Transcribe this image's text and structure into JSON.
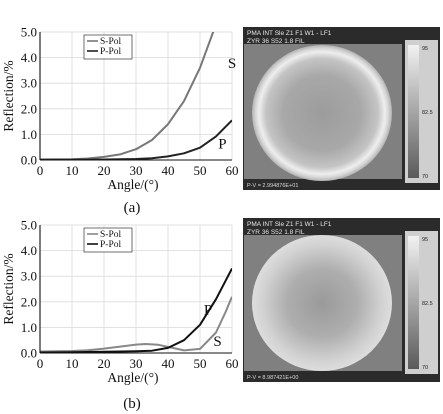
{
  "chart_data": [
    {
      "type": "line",
      "panel": "(a)",
      "xlabel": "Angle/(°)",
      "ylabel": "Reflection/%",
      "xlim": [
        0,
        60
      ],
      "ylim": [
        0,
        5
      ],
      "xticks": [
        "0",
        "10",
        "20",
        "30",
        "40",
        "50",
        "60"
      ],
      "yticks": [
        "0.0",
        "1.0",
        "2.0",
        "3.0",
        "4.0",
        "5.0"
      ],
      "grid": true,
      "legend": [
        "S-Pol",
        "P-Pol"
      ],
      "legend_placement": "top-left",
      "curve_labels": {
        "s": "S",
        "p": "P"
      },
      "series": [
        {
          "name": "S-Pol",
          "color": "#777777",
          "x": [
            0,
            10,
            15,
            20,
            25,
            30,
            35,
            40,
            45,
            50,
            55
          ],
          "y": [
            0.02,
            0.03,
            0.06,
            0.12,
            0.22,
            0.42,
            0.78,
            1.4,
            2.3,
            3.6,
            5.3
          ]
        },
        {
          "name": "P-Pol",
          "color": "#222222",
          "x": [
            0,
            10,
            20,
            30,
            35,
            40,
            45,
            50,
            55,
            60
          ],
          "y": [
            0.01,
            0.01,
            0.02,
            0.04,
            0.07,
            0.14,
            0.26,
            0.48,
            0.92,
            1.55
          ]
        }
      ]
    },
    {
      "type": "line",
      "panel": "(b)",
      "xlabel": "Angle/(°)",
      "ylabel": "Reflection/%",
      "xlim": [
        0,
        60
      ],
      "ylim": [
        0,
        5
      ],
      "xticks": [
        "0",
        "10",
        "20",
        "30",
        "40",
        "50",
        "60"
      ],
      "yticks": [
        "0.0",
        "1.0",
        "2.0",
        "3.0",
        "4.0",
        "5.0"
      ],
      "grid": true,
      "legend": [
        "S-Pol",
        "P-Pol"
      ],
      "legend_placement": "top-left",
      "curve_labels": {
        "s": "S",
        "p": "P"
      },
      "series": [
        {
          "name": "S-Pol",
          "color": "#888888",
          "x": [
            0,
            10,
            15,
            20,
            25,
            30,
            33,
            37,
            40,
            45,
            50,
            55,
            58,
            60
          ],
          "y": [
            0.06,
            0.08,
            0.11,
            0.17,
            0.25,
            0.33,
            0.35,
            0.32,
            0.24,
            0.1,
            0.16,
            0.8,
            1.6,
            2.2
          ]
        },
        {
          "name": "P-Pol",
          "color": "#111111",
          "x": [
            0,
            10,
            20,
            25,
            30,
            35,
            40,
            45,
            50,
            55,
            60
          ],
          "y": [
            0.02,
            0.03,
            0.05,
            0.06,
            0.07,
            0.09,
            0.2,
            0.5,
            1.1,
            2.1,
            3.3
          ]
        }
      ]
    }
  ],
  "captions": {
    "a": "(a)",
    "b": "(b)"
  },
  "maps": [
    {
      "header_line1": "PMA INT Sle Z1 F1 W1 - LF1",
      "header_line2": "ZYR  36 S52 1.8 FIL",
      "footer": "P-V = 2.994876E+01",
      "scale": [
        "95",
        "82.5",
        "70"
      ]
    },
    {
      "header_line1": "PMA INT Sle Z1 F1 W1 - LF1",
      "header_line2": "ZYR  36 S52 1.8 FIL",
      "footer": "P-V = 8.987421E+00",
      "scale": [
        "95",
        "82.5",
        "70"
      ]
    }
  ]
}
